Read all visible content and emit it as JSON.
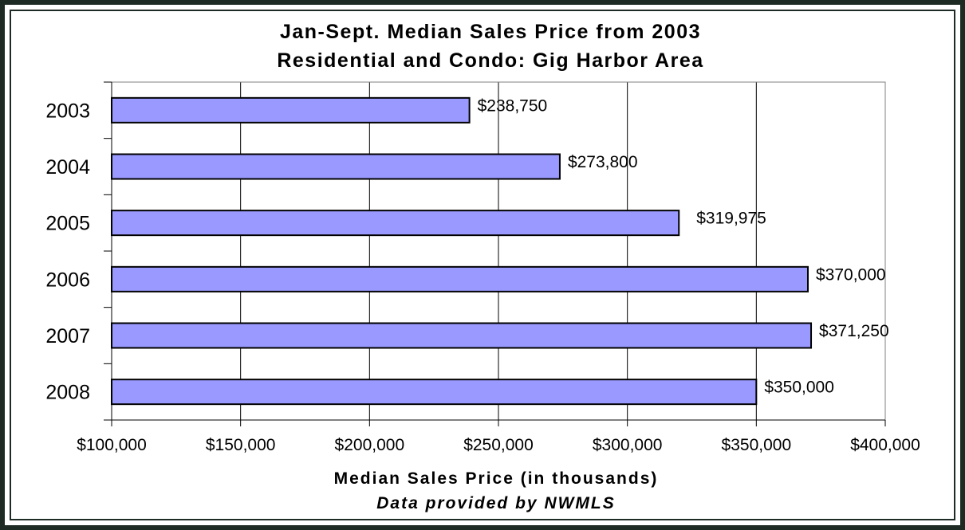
{
  "chart_data": {
    "type": "bar",
    "orientation": "horizontal",
    "title": "Jan-Sept. Median Sales Price from 2003",
    "subtitle": "Residential and Condo:  Gig Harbor Area",
    "xlabel": "Median Sales Price (in thousands)",
    "note": "Data provided by NWMLS",
    "ylabel": "",
    "categories": [
      "2003",
      "2004",
      "2005",
      "2006",
      "2007",
      "2008"
    ],
    "values": [
      238750,
      273800,
      319975,
      370000,
      371250,
      350000
    ],
    "value_labels": [
      "$238,750",
      "$273,800",
      "$319,975",
      "$370,000",
      "$371,250",
      "$350,000"
    ],
    "xlim": [
      100000,
      400000
    ],
    "x_ticks": [
      100000,
      150000,
      200000,
      250000,
      300000,
      350000,
      400000
    ],
    "x_tick_labels": [
      "$100,000",
      "$150,000",
      "$200,000",
      "$250,000",
      "$300,000",
      "$350,000",
      "$400,000"
    ],
    "grid": "vertical",
    "legend": "none",
    "colors": {
      "bar_fill": "#9999ff",
      "bar_stroke": "#000000",
      "frame": "#1e2a24"
    }
  }
}
